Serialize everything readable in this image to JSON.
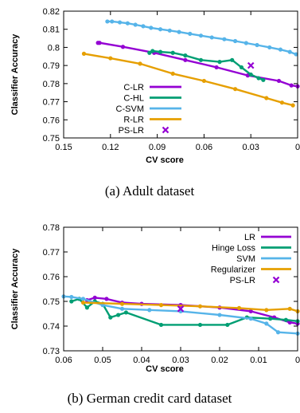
{
  "chart_data": [
    {
      "type": "line",
      "caption": "(a) Adult dataset",
      "xlabel": "CV score",
      "ylabel": "Classifier Accuracy",
      "xlim": [
        0.15,
        0
      ],
      "ylim": [
        0.75,
        0.82
      ],
      "x_reversed": true,
      "xticks": [
        0.15,
        0.12,
        0.09,
        0.06,
        0.03,
        0
      ],
      "xtick_labels": [
        "0.15",
        "0.12",
        "0.09",
        "0.06",
        "0.03",
        "0"
      ],
      "yticks": [
        0.75,
        0.76,
        0.77,
        0.78,
        0.79,
        0.8,
        0.81,
        0.82
      ],
      "ytick_labels": [
        "0.75",
        "0.76",
        "0.77",
        "0.78",
        "0.79",
        "0.8",
        "0.81",
        "0.82"
      ],
      "legend_position": "bottom-left",
      "series": [
        {
          "name": "C-LR",
          "color": "#9400d3",
          "marker": "dot",
          "x": [
            0.128,
            0.127,
            0.112,
            0.092,
            0.072,
            0.052,
            0.032,
            0.012,
            0.004,
            0.0
          ],
          "y": [
            0.8025,
            0.8025,
            0.8003,
            0.797,
            0.793,
            0.789,
            0.7845,
            0.7815,
            0.779,
            0.7785
          ]
        },
        {
          "name": "C-HL",
          "color": "#009e73",
          "marker": "dot",
          "x": [
            0.095,
            0.093,
            0.088,
            0.08,
            0.072,
            0.062,
            0.05,
            0.042,
            0.036,
            0.03,
            0.025,
            0.022
          ],
          "y": [
            0.797,
            0.798,
            0.7975,
            0.797,
            0.7955,
            0.793,
            0.792,
            0.793,
            0.789,
            0.785,
            0.783,
            0.782
          ]
        },
        {
          "name": "C-SVM",
          "color": "#56b4e9",
          "marker": "dot",
          "x": [
            0.122,
            0.119,
            0.114,
            0.109,
            0.104,
            0.099,
            0.094,
            0.088,
            0.082,
            0.076,
            0.069,
            0.062,
            0.055,
            0.047,
            0.04,
            0.033,
            0.026,
            0.018,
            0.011,
            0.005,
            0.001
          ],
          "y": [
            0.8143,
            0.8143,
            0.8138,
            0.8133,
            0.8125,
            0.8117,
            0.8108,
            0.81,
            0.8093,
            0.8085,
            0.8075,
            0.8065,
            0.8055,
            0.8045,
            0.8035,
            0.8024,
            0.8013,
            0.8,
            0.7988,
            0.7975,
            0.7962
          ]
        },
        {
          "name": "R-LR",
          "color": "#e69f00",
          "marker": "dot",
          "x": [
            0.137,
            0.12,
            0.101,
            0.08,
            0.06,
            0.04,
            0.02,
            0.01,
            0.003
          ],
          "y": [
            0.7965,
            0.794,
            0.791,
            0.7855,
            0.7815,
            0.777,
            0.772,
            0.7695,
            0.768
          ]
        },
        {
          "name": "PS-LR",
          "color": "#9400d3",
          "marker": "cross",
          "x": [
            0.03
          ],
          "y": [
            0.79
          ]
        }
      ]
    },
    {
      "type": "line",
      "caption": "(b) German credit card dataset",
      "xlabel": "CV score",
      "ylabel": "Classifier Accuracy",
      "xlim": [
        0.06,
        0
      ],
      "ylim": [
        0.73,
        0.78
      ],
      "x_reversed": true,
      "xticks": [
        0.06,
        0.05,
        0.04,
        0.03,
        0.02,
        0.01,
        0
      ],
      "xtick_labels": [
        "0.06",
        "0.05",
        "0.04",
        "0.03",
        "0.02",
        "0.01",
        "0"
      ],
      "yticks": [
        0.73,
        0.74,
        0.75,
        0.76,
        0.77,
        0.78
      ],
      "ytick_labels": [
        "0.73",
        "0.74",
        "0.75",
        "0.76",
        "0.77",
        "0.78"
      ],
      "legend_position": "top-right",
      "series": [
        {
          "name": "LR",
          "color": "#9400d3",
          "marker": "dot",
          "x": [
            0.054,
            0.052,
            0.049,
            0.045,
            0.04,
            0.03,
            0.02,
            0.012,
            0.006,
            0.002,
            0.0
          ],
          "y": [
            0.7505,
            0.7515,
            0.751,
            0.7495,
            0.749,
            0.7485,
            0.7475,
            0.746,
            0.7435,
            0.7415,
            0.741
          ]
        },
        {
          "name": "Hinge Loss",
          "color": "#009e73",
          "marker": "dot",
          "x": [
            0.058,
            0.056,
            0.054,
            0.052,
            0.05,
            0.048,
            0.046,
            0.044,
            0.035,
            0.025,
            0.018,
            0.013,
            0.007,
            0.003,
            0.0
          ],
          "y": [
            0.75,
            0.751,
            0.7475,
            0.75,
            0.749,
            0.7435,
            0.7445,
            0.7455,
            0.7405,
            0.7405,
            0.7405,
            0.7435,
            0.743,
            0.7425,
            0.742
          ]
        },
        {
          "name": "SVM",
          "color": "#56b4e9",
          "marker": "dot",
          "x": [
            0.06,
            0.058,
            0.055,
            0.05,
            0.045,
            0.038,
            0.03,
            0.02,
            0.012,
            0.008,
            0.005,
            0.0
          ],
          "y": [
            0.752,
            0.7518,
            0.751,
            0.7485,
            0.747,
            0.7465,
            0.746,
            0.7445,
            0.743,
            0.741,
            0.7375,
            0.737
          ]
        },
        {
          "name": "Regularizer",
          "color": "#e69f00",
          "marker": "dot",
          "x": [
            0.055,
            0.045,
            0.035,
            0.025,
            0.015,
            0.008,
            0.002,
            0.0
          ],
          "y": [
            0.7495,
            0.749,
            0.7485,
            0.748,
            0.7473,
            0.7465,
            0.747,
            0.746
          ]
        },
        {
          "name": "PS-LR",
          "color": "#9400d3",
          "marker": "cross",
          "x": [
            0.03
          ],
          "y": [
            0.747
          ]
        }
      ]
    }
  ]
}
